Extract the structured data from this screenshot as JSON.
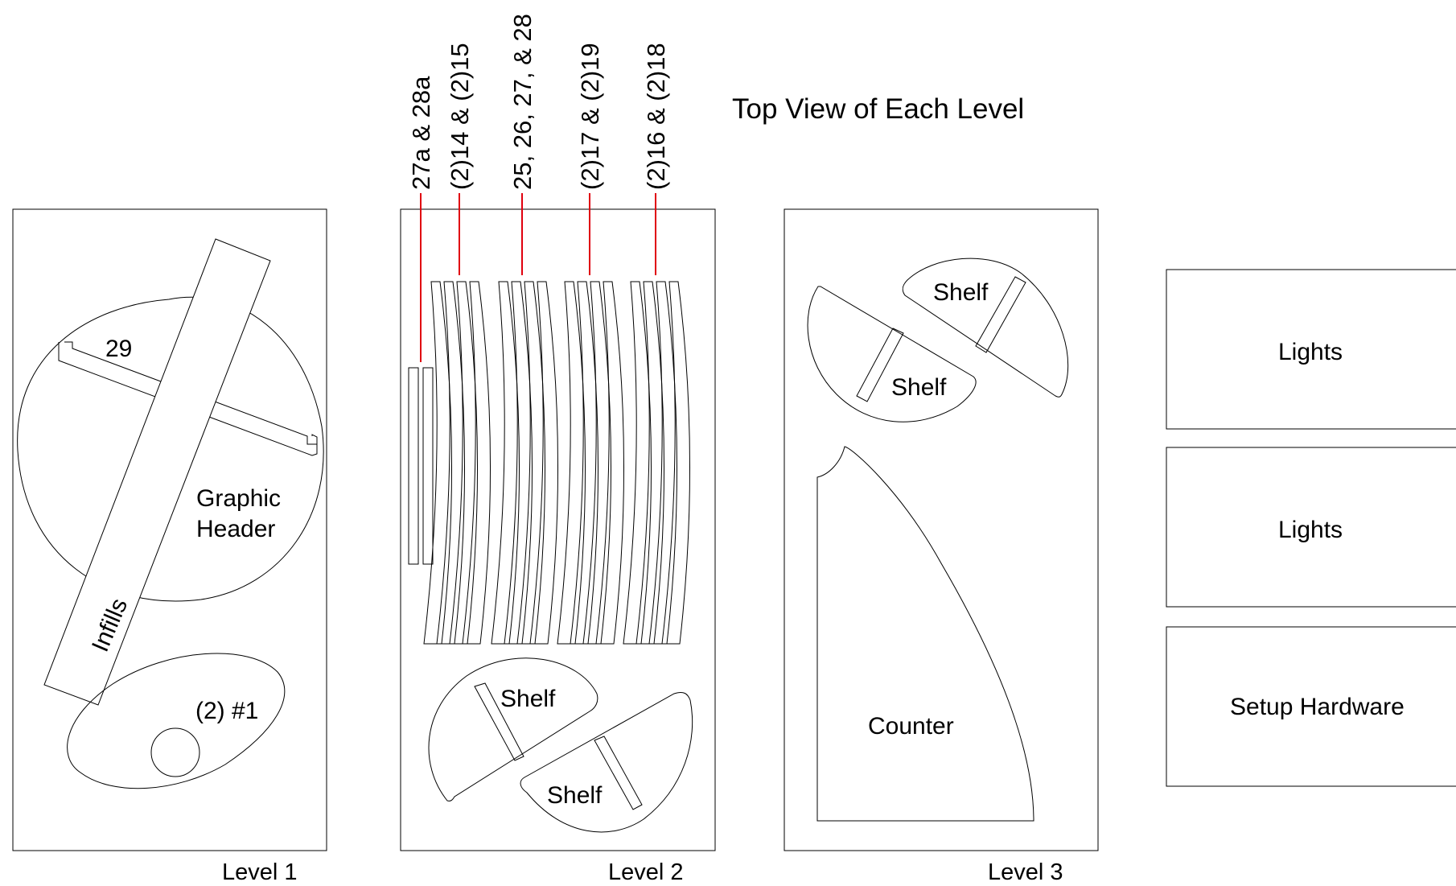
{
  "title": "Top View of Each Level",
  "levels": [
    {
      "label": "Level 1"
    },
    {
      "label": "Level 2"
    },
    {
      "label": "Level 3"
    }
  ],
  "level1": {
    "part_29": "29",
    "graphic_header_line1": "Graphic",
    "graphic_header_line2": "Header",
    "infills": "Infills",
    "part_1": "(2) #1"
  },
  "level2": {
    "callouts": [
      "27a & 28a",
      "(2)14 & (2)15",
      "25, 26, 27, & 28",
      "(2)17 & (2)19",
      "(2)16 & (2)18"
    ],
    "shelf_a": "Shelf",
    "shelf_b": "Shelf"
  },
  "level3": {
    "shelf_a": "Shelf",
    "shelf_b": "Shelf",
    "counter": "Counter"
  },
  "boxes": [
    "Lights",
    "Lights",
    "Setup Hardware"
  ]
}
